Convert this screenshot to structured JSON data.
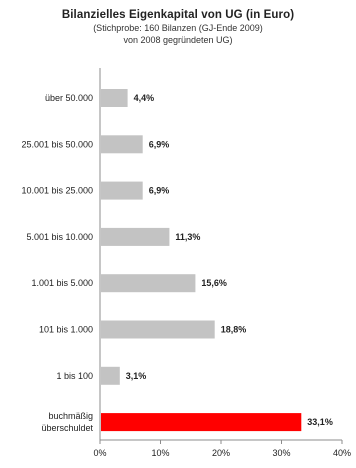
{
  "chart_data": {
    "type": "bar",
    "orientation": "horizontal",
    "title": "Bilanzielles Eigenkapital von UG (in Euro)",
    "subtitle_lines": [
      "(Stichprobe: 160 Bilanzen (GJ-Ende 2009)",
      "von 2008 gegründeten UG)"
    ],
    "categories": [
      [
        "über 50.000"
      ],
      [
        "25.001 bis 50.000"
      ],
      [
        "10.001 bis 25.000"
      ],
      [
        "5.001 bis 10.000"
      ],
      [
        "1.001 bis 5.000"
      ],
      [
        "101 bis 1.000"
      ],
      [
        "1 bis 100"
      ],
      [
        "buchmäßig",
        "überschuldet"
      ]
    ],
    "values": [
      4.4,
      6.9,
      6.9,
      11.3,
      15.6,
      18.8,
      3.1,
      33.1
    ],
    "value_labels": [
      "4,4%",
      "6,9%",
      "6,9%",
      "11,3%",
      "15,6%",
      "18,8%",
      "3,1%",
      "33,1%"
    ],
    "bar_colors": [
      "#c3c3c3",
      "#c3c3c3",
      "#c3c3c3",
      "#c3c3c3",
      "#c3c3c3",
      "#c3c3c3",
      "#c3c3c3",
      "#ff0000"
    ],
    "xlim": [
      0,
      40
    ],
    "x_ticks": [
      0,
      10,
      20,
      30,
      40
    ],
    "x_tick_labels": [
      "0%",
      "10%",
      "20%",
      "30%",
      "40%"
    ],
    "grid": false,
    "legend": "none"
  }
}
